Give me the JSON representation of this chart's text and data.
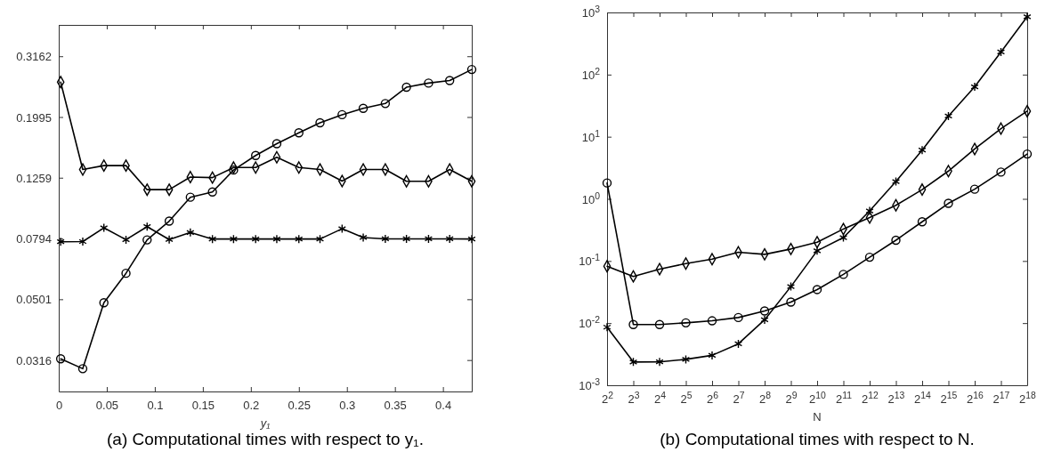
{
  "chart_data": [
    {
      "type": "line",
      "xlabel": "y₁",
      "annotations": [
        "(a) Computational times with respect to y₁."
      ],
      "x": [
        0.002,
        0.025,
        0.047,
        0.07,
        0.092,
        0.115,
        0.137,
        0.16,
        0.182,
        0.205,
        0.227,
        0.25,
        0.272,
        0.295,
        0.317,
        0.34,
        0.362,
        0.385,
        0.407,
        0.43
      ],
      "xlim": [
        0,
        0.43
      ],
      "xticks": [
        0,
        0.05,
        0.1,
        0.15,
        0.2,
        0.25,
        0.3,
        0.35,
        0.4
      ],
      "ylim": [
        0.0249,
        0.401
      ],
      "yticks": [
        0.0316,
        0.0501,
        0.0794,
        0.1259,
        0.1995,
        0.3162
      ],
      "log": "y",
      "grid": false,
      "series": [
        {
          "color": "#000000",
          "marker": "circle",
          "values": [
            0.0319,
            0.0296,
            0.0488,
            0.061,
            0.0786,
            0.0906,
            0.1086,
            0.113,
            0.1334,
            0.149,
            0.163,
            0.177,
            0.191,
            0.203,
            0.213,
            0.221,
            0.25,
            0.258,
            0.263,
            0.286
          ]
        },
        {
          "color": "#000000",
          "marker": "diamond",
          "values": [
            0.26,
            0.134,
            0.138,
            0.138,
            0.115,
            0.115,
            0.1265,
            0.126,
            0.136,
            0.136,
            0.147,
            0.136,
            0.134,
            0.1228,
            0.134,
            0.134,
            0.1225,
            0.1225,
            0.134,
            0.1225
          ]
        },
        {
          "color": "#000000",
          "marker": "cross",
          "values": [
            0.0775,
            0.0776,
            0.0861,
            0.0787,
            0.0869,
            0.0788,
            0.0831,
            0.0791,
            0.0791,
            0.0791,
            0.0791,
            0.0791,
            0.0791,
            0.0855,
            0.08,
            0.0792,
            0.0792,
            0.0792,
            0.0792,
            0.0791
          ]
        }
      ]
    },
    {
      "type": "line",
      "xlabel": "N",
      "annotations": [
        "(b) Computational times with respect to N."
      ],
      "x": [
        4,
        8,
        16,
        32,
        64,
        128,
        256,
        512,
        1024,
        2048,
        4096,
        8192,
        16384,
        32768,
        65536,
        131072,
        262144
      ],
      "xlim": [
        4,
        262144
      ],
      "xticks": [
        {
          "value": 4,
          "label": "2$^{2}$"
        },
        {
          "value": 8,
          "label": "2$^{3}$"
        },
        {
          "value": 16,
          "label": "2$^{4}$"
        },
        {
          "value": 32,
          "label": "2$^{5}$"
        },
        {
          "value": 64,
          "label": "2$^{6}$"
        },
        {
          "value": 128,
          "label": "2$^{7}$"
        },
        {
          "value": 256,
          "label": "2$^{8}$"
        },
        {
          "value": 512,
          "label": "2$^{9}$"
        },
        {
          "value": 1024,
          "label": "2$^{10}$"
        },
        {
          "value": 2048,
          "label": "2$^{11}$"
        },
        {
          "value": 4096,
          "label": "2$^{12}$"
        },
        {
          "value": 8192,
          "label": "2$^{13}$"
        },
        {
          "value": 16384,
          "label": "2$^{14}$"
        },
        {
          "value": 32768,
          "label": "2$^{15}$"
        },
        {
          "value": 65536,
          "label": "2$^{16}$"
        },
        {
          "value": 131072,
          "label": "2$^{17}$"
        },
        {
          "value": 262144,
          "label": "2$^{18}$"
        }
      ],
      "ylim": [
        0.001,
        1000
      ],
      "yticks": [
        {
          "value": 0.001,
          "label": "10$^{-3}$"
        },
        {
          "value": 0.01,
          "label": "10$^{-2}$"
        },
        {
          "value": 0.1,
          "label": "10$^{-1}$"
        },
        {
          "value": 1,
          "label": "10$^{0}$"
        },
        {
          "value": 10,
          "label": "10$^{1}$"
        },
        {
          "value": 100,
          "label": "10$^{2}$"
        },
        {
          "value": 1000,
          "label": "10$^{3}$"
        }
      ],
      "log": "xy",
      "grid": false,
      "series": [
        {
          "color": "#000000",
          "marker": "circle",
          "values": [
            1.8,
            0.0095,
            0.0095,
            0.0101,
            0.0109,
            0.0123,
            0.0157,
            0.0218,
            0.0347,
            0.0608,
            0.115,
            0.216,
            0.428,
            0.847,
            1.43,
            2.7,
            5.27
          ]
        },
        {
          "color": "#000000",
          "marker": "diamond",
          "values": [
            0.0824,
            0.0565,
            0.074,
            0.091,
            0.107,
            0.138,
            0.128,
            0.156,
            0.201,
            0.327,
            0.5,
            0.787,
            1.41,
            2.8,
            6.34,
            13.5,
            25.8
          ]
        },
        {
          "color": "#000000",
          "marker": "cross",
          "values": [
            0.0086,
            0.00237,
            0.00238,
            0.00261,
            0.00303,
            0.00464,
            0.0113,
            0.0387,
            0.146,
            0.238,
            0.64,
            1.9,
            6.1,
            21.5,
            63.6,
            231,
            853
          ]
        }
      ]
    }
  ]
}
